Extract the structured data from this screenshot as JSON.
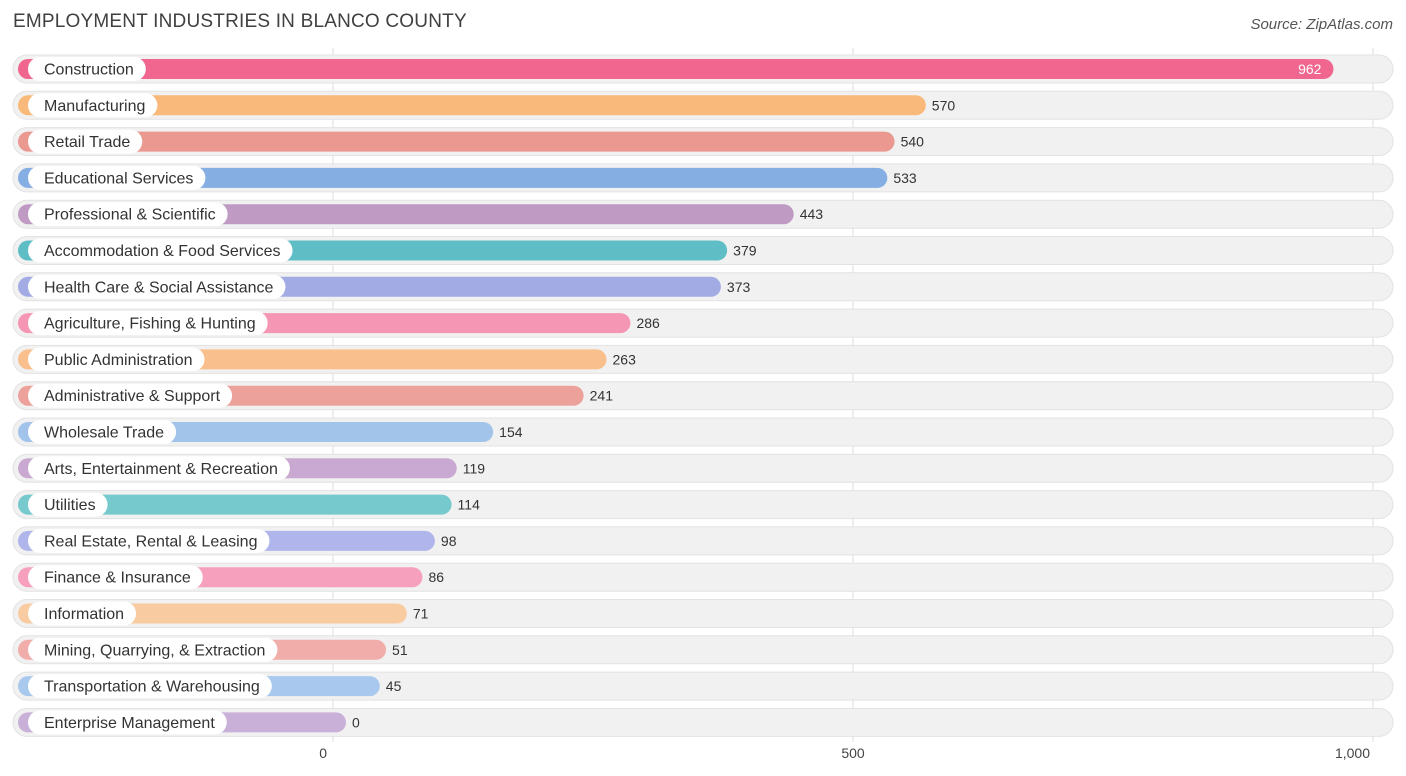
{
  "title": "EMPLOYMENT INDUSTRIES IN BLANCO COUNTY",
  "source": "Source: ZipAtlas.com",
  "chart_data": {
    "type": "bar",
    "orientation": "horizontal",
    "title": "EMPLOYMENT INDUSTRIES IN BLANCO COUNTY",
    "xlabel": "",
    "ylabel": "",
    "xlim": [
      0,
      1000
    ],
    "xticks": [
      0,
      500,
      1000
    ],
    "xtick_labels": [
      "0",
      "500",
      "1,000"
    ],
    "categories": [
      "Construction",
      "Manufacturing",
      "Retail Trade",
      "Educational Services",
      "Professional & Scientific",
      "Accommodation & Food Services",
      "Health Care & Social Assistance",
      "Agriculture, Fishing & Hunting",
      "Public Administration",
      "Administrative & Support",
      "Wholesale Trade",
      "Arts, Entertainment & Recreation",
      "Utilities",
      "Real Estate, Rental & Leasing",
      "Finance & Insurance",
      "Information",
      "Mining, Quarrying, & Extraction",
      "Transportation & Warehousing",
      "Enterprise Management"
    ],
    "values": [
      962,
      570,
      540,
      533,
      443,
      379,
      373,
      286,
      263,
      241,
      154,
      119,
      114,
      98,
      86,
      71,
      51,
      45,
      0
    ],
    "colors": [
      "#f0668f",
      "#f9b97a",
      "#ea9890",
      "#85aee2",
      "#bf9bc4",
      "#5fbec5",
      "#a3abe5",
      "#f597b4",
      "#f9c08d",
      "#eca29b",
      "#a2c4ea",
      "#c9a9d1",
      "#76c9cd",
      "#b0b6ec",
      "#f6a0bd",
      "#f9cba1",
      "#f0ada9",
      "#a8c8ee",
      "#c9b0d8"
    ]
  }
}
